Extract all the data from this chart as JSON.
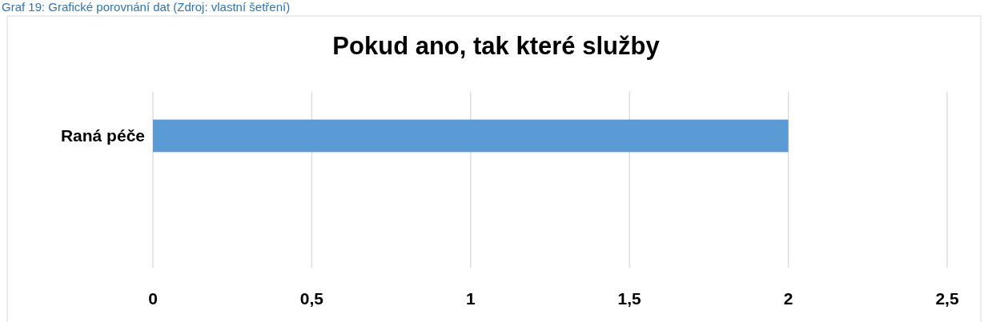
{
  "chart_data": {
    "type": "bar",
    "orientation": "horizontal",
    "title": "Pokud ano, tak které služby",
    "annotations": [
      "Graf 19: Grafické porovnání dat (Zdroj: vlastní šetření)"
    ],
    "categories": [
      "Raná péče",
      null
    ],
    "values": [
      2,
      null
    ],
    "color": "#5b9bd5",
    "xlim": [
      0,
      2.5
    ],
    "xticks": [
      0,
      {
        "value": 0.5,
        "label": "0,5"
      },
      1,
      {
        "value": 1.5,
        "label": "1,5"
      },
      2,
      {
        "value": 2.5,
        "label": "2,5"
      }
    ],
    "grid": "x"
  }
}
